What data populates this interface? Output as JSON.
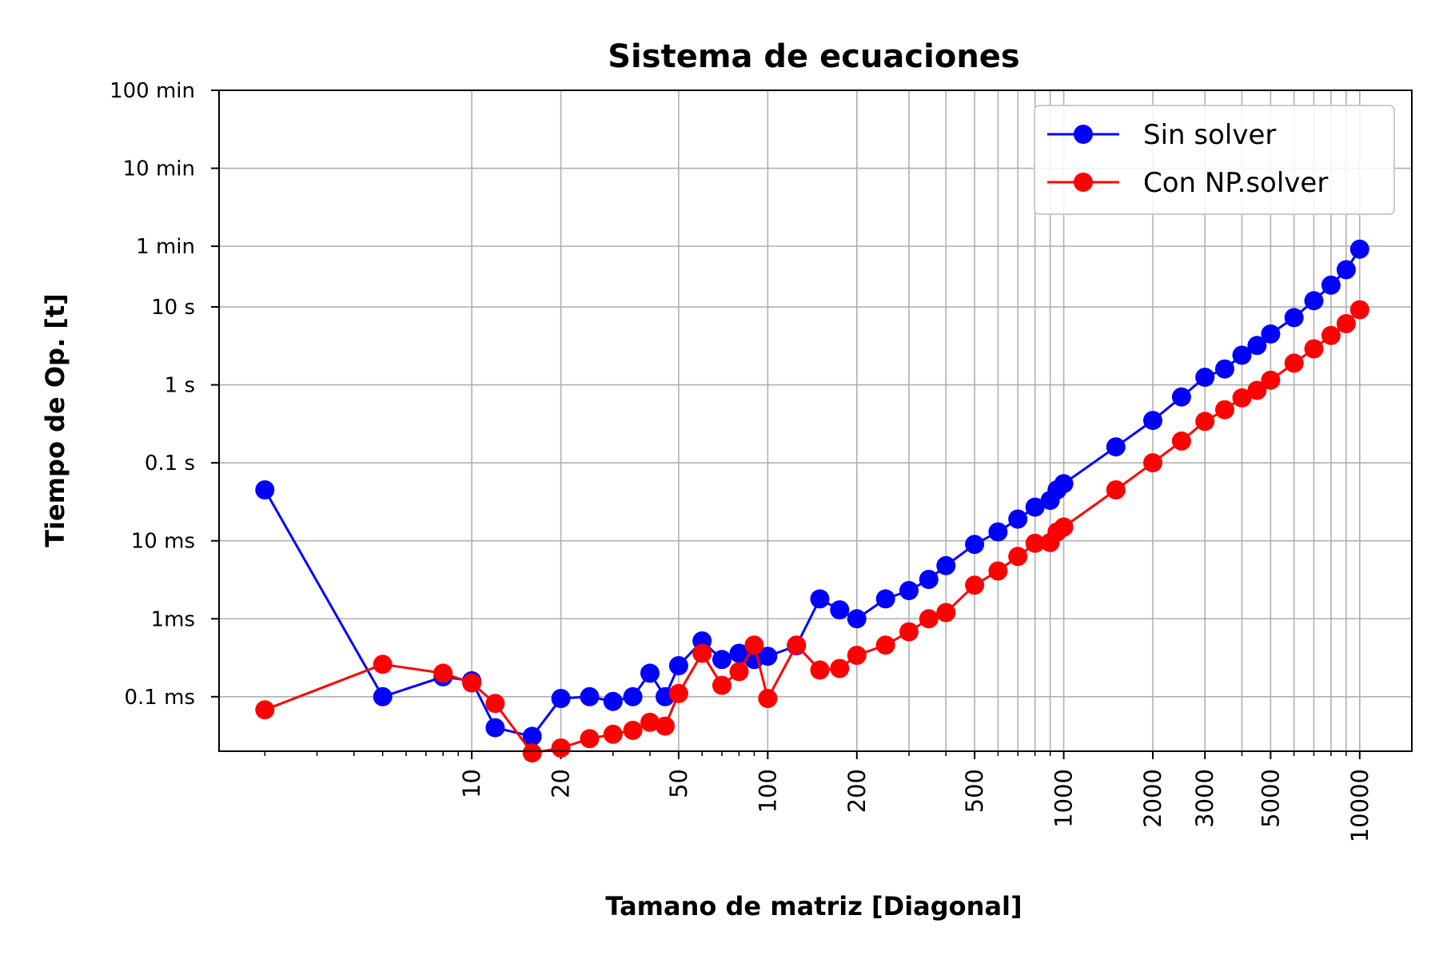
{
  "chart_data": {
    "type": "line",
    "title": "Sistema de ecuaciones",
    "xlabel": "Tamano de matriz [Diagonal]",
    "ylabel": "Tiempo de Op. [t]",
    "xscale": "log",
    "yscale": "log",
    "xlim": [
      1.4,
      15000
    ],
    "ylim": [
      2e-05,
      6000
    ],
    "grid": true,
    "legend_position": "top-right",
    "x_ticks": [
      {
        "value": 10,
        "label": "10"
      },
      {
        "value": 20,
        "label": "20"
      },
      {
        "value": 50,
        "label": "50"
      },
      {
        "value": 100,
        "label": "100"
      },
      {
        "value": 200,
        "label": "200"
      },
      {
        "value": 500,
        "label": "500"
      },
      {
        "value": 1000,
        "label": "1000"
      },
      {
        "value": 2000,
        "label": "2000"
      },
      {
        "value": 3000,
        "label": "3000"
      },
      {
        "value": 5000,
        "label": "5000"
      },
      {
        "value": 10000,
        "label": "10000"
      }
    ],
    "y_ticks": [
      {
        "value": 0.0001,
        "label": "0.1 ms"
      },
      {
        "value": 0.001,
        "label": "1ms"
      },
      {
        "value": 0.01,
        "label": "10 ms"
      },
      {
        "value": 0.1,
        "label": "0.1 s"
      },
      {
        "value": 1,
        "label": "1 s"
      },
      {
        "value": 10,
        "label": "10 s"
      },
      {
        "value": 60,
        "label": "1 min"
      },
      {
        "value": 600,
        "label": "10 min"
      },
      {
        "value": 6000,
        "label": "100 min"
      }
    ],
    "series": [
      {
        "name": "Sin solver",
        "color": "#0000ff",
        "points": [
          [
            2,
            0.045
          ],
          [
            5,
            0.0001
          ],
          [
            8,
            0.00018
          ],
          [
            10,
            0.00016
          ],
          [
            12,
            4e-05
          ],
          [
            16,
            3.1e-05
          ],
          [
            20,
            9.5e-05
          ],
          [
            25,
            0.0001
          ],
          [
            30,
            8.7e-05
          ],
          [
            35,
            0.0001
          ],
          [
            40,
            0.0002
          ],
          [
            45,
            0.0001
          ],
          [
            50,
            0.00025
          ],
          [
            60,
            0.00052
          ],
          [
            70,
            0.0003
          ],
          [
            80,
            0.00036
          ],
          [
            90,
            0.0003
          ],
          [
            100,
            0.00033
          ],
          [
            125,
            0.00045
          ],
          [
            150,
            0.0018
          ],
          [
            175,
            0.0013
          ],
          [
            200,
            0.001
          ],
          [
            250,
            0.0018
          ],
          [
            300,
            0.0023
          ],
          [
            350,
            0.0032
          ],
          [
            400,
            0.0048
          ],
          [
            500,
            0.009
          ],
          [
            600,
            0.013
          ],
          [
            700,
            0.019
          ],
          [
            800,
            0.027
          ],
          [
            900,
            0.033
          ],
          [
            950,
            0.045
          ],
          [
            1000,
            0.054
          ],
          [
            1500,
            0.16
          ],
          [
            2000,
            0.35
          ],
          [
            2500,
            0.7
          ],
          [
            3000,
            1.25
          ],
          [
            3500,
            1.6
          ],
          [
            4000,
            2.4
          ],
          [
            4500,
            3.2
          ],
          [
            5000,
            4.5
          ],
          [
            6000,
            7.3
          ],
          [
            7000,
            12
          ],
          [
            8000,
            19
          ],
          [
            9000,
            30
          ],
          [
            10000,
            55
          ]
        ]
      },
      {
        "name": "Con NP.solver",
        "color": "#ff0000",
        "points": [
          [
            2,
            6.8e-05
          ],
          [
            5,
            0.00026
          ],
          [
            8,
            0.0002
          ],
          [
            10,
            0.00015
          ],
          [
            12,
            8.2e-05
          ],
          [
            16,
            1.9e-05
          ],
          [
            20,
            2.2e-05
          ],
          [
            25,
            2.9e-05
          ],
          [
            30,
            3.3e-05
          ],
          [
            35,
            3.7e-05
          ],
          [
            40,
            4.7e-05
          ],
          [
            45,
            4.2e-05
          ],
          [
            50,
            0.00011
          ],
          [
            60,
            0.00036
          ],
          [
            70,
            0.00014
          ],
          [
            80,
            0.00021
          ],
          [
            90,
            0.00046
          ],
          [
            100,
            9.5e-05
          ],
          [
            125,
            0.00046
          ],
          [
            150,
            0.00022
          ],
          [
            175,
            0.00023
          ],
          [
            200,
            0.00034
          ],
          [
            250,
            0.00046
          ],
          [
            300,
            0.00068
          ],
          [
            350,
            0.001
          ],
          [
            400,
            0.0012
          ],
          [
            500,
            0.0027
          ],
          [
            600,
            0.0041
          ],
          [
            700,
            0.0063
          ],
          [
            800,
            0.0093
          ],
          [
            900,
            0.0095
          ],
          [
            950,
            0.013
          ],
          [
            1000,
            0.015
          ],
          [
            1500,
            0.045
          ],
          [
            2000,
            0.1
          ],
          [
            2500,
            0.19
          ],
          [
            3000,
            0.34
          ],
          [
            3500,
            0.48
          ],
          [
            4000,
            0.68
          ],
          [
            4500,
            0.85
          ],
          [
            5000,
            1.15
          ],
          [
            6000,
            1.9
          ],
          [
            7000,
            2.9
          ],
          [
            8000,
            4.3
          ],
          [
            9000,
            6.1
          ],
          [
            10000,
            9.2
          ]
        ]
      }
    ]
  }
}
